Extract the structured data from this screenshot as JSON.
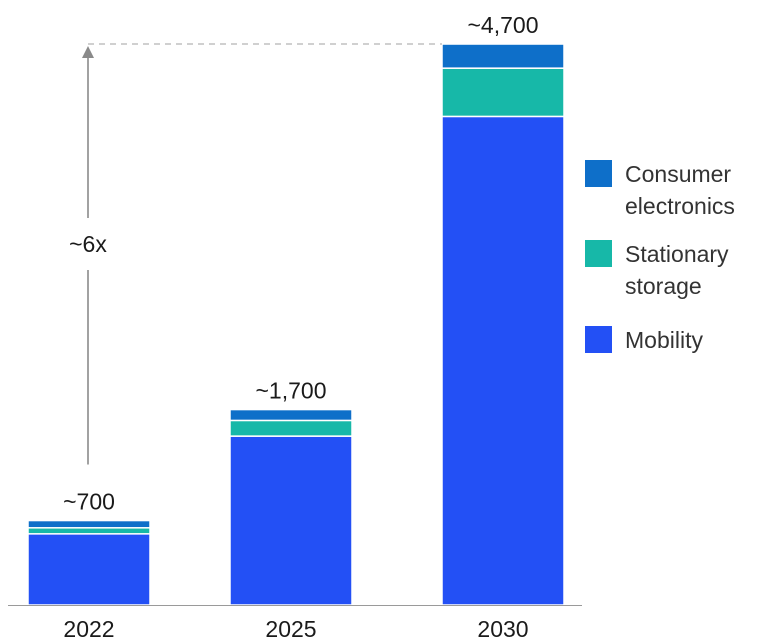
{
  "chart_data": {
    "type": "bar",
    "stacked": true,
    "categories": [
      "2022",
      "2025",
      "2030"
    ],
    "total_labels": [
      "~700",
      "~1,700",
      "~4,700"
    ],
    "series": [
      {
        "name": "Mobility",
        "values": [
          590,
          1400,
          4050
        ],
        "color": "#2350f5"
      },
      {
        "name": "Stationary storage",
        "values": [
          50,
          130,
          400
        ],
        "color": "#17b8a8"
      },
      {
        "name": "Consumer electronics",
        "values": [
          60,
          90,
          200
        ],
        "color": "#0e6fc9"
      }
    ],
    "legend_order": [
      "Consumer electronics",
      "Stationary storage",
      "Mobility"
    ],
    "legend": {
      "placement": "right",
      "items": [
        {
          "name": "Consumer electronics",
          "lines": [
            "Consumer",
            "electronics"
          ],
          "color": "#0e6fc9"
        },
        {
          "name": "Stationary storage",
          "lines": [
            "Stationary",
            "storage"
          ],
          "color": "#17b8a8"
        },
        {
          "name": "Mobility",
          "lines": [
            "Mobility"
          ],
          "color": "#2350f5"
        }
      ]
    },
    "growth_annotation": "~6x",
    "ylim": [
      0,
      4700
    ],
    "grid": false,
    "title": "",
    "xlabel": "",
    "ylabel": ""
  }
}
